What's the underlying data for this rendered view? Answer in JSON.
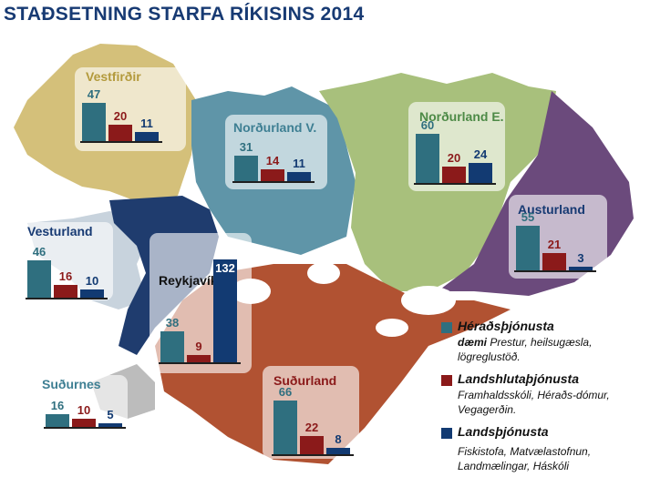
{
  "title": "STAÐSETNING STARFA RÍKISINS 2014",
  "colors": {
    "heradsthjonusta": "#2f6f7f",
    "landshlutathjonusta": "#8b1a1a",
    "landsthjonusta": "#123a72",
    "west_fjords": "#d4c07a",
    "north_west": "#5f95a8",
    "north_east": "#a8c07c",
    "east": "#6b4a7c",
    "south": "#b15232",
    "reykjavik": "#1f3c6e",
    "sudurnes": "#bcbcbc",
    "vesturland": "#c8d3dd"
  },
  "chart_data": [
    {
      "type": "bar",
      "region": "Vestfirðir",
      "categories": [
        "Héraðsþjónusta",
        "Landshlutaþjónusta",
        "Landsþjónusta"
      ],
      "values": [
        47,
        20,
        11
      ]
    },
    {
      "type": "bar",
      "region": "Norðurland V.",
      "categories": [
        "Héraðsþjónusta",
        "Landshlutaþjónusta",
        "Landsþjónusta"
      ],
      "values": [
        31,
        14,
        11
      ]
    },
    {
      "type": "bar",
      "region": "Norðurland E.",
      "categories": [
        "Héraðsþjónusta",
        "Landshlutaþjónusta",
        "Landsþjónusta"
      ],
      "values": [
        60,
        20,
        24
      ]
    },
    {
      "type": "bar",
      "region": "Austurland",
      "categories": [
        "Héraðsþjónusta",
        "Landshlutaþjónusta",
        "Landsþjónusta"
      ],
      "values": [
        55,
        21,
        3
      ]
    },
    {
      "type": "bar",
      "region": "Vesturland",
      "categories": [
        "Héraðsþjónusta",
        "Landshlutaþjónusta",
        "Landsþjónusta"
      ],
      "values": [
        46,
        16,
        10
      ]
    },
    {
      "type": "bar",
      "region": "Reykjavík",
      "categories": [
        "Héraðsþjónusta",
        "Landshlutaþjónusta",
        "Landsþjónusta"
      ],
      "values": [
        38,
        9,
        132
      ]
    },
    {
      "type": "bar",
      "region": "Suðurnes",
      "categories": [
        "Héraðsþjónusta",
        "Landshlutaþjónusta",
        "Landsþjónusta"
      ],
      "values": [
        16,
        10,
        5
      ]
    },
    {
      "type": "bar",
      "region": "Suðurland",
      "categories": [
        "Héraðsþjónusta",
        "Landshlutaþjónusta",
        "Landsþjónusta"
      ],
      "values": [
        66,
        22,
        8
      ]
    }
  ],
  "legend": {
    "heradsthjonusta": {
      "title": "Héraðsþjónusta",
      "examples_label": "dæmi",
      "examples": "Prestur, heilsugæsla, lögreglustöð."
    },
    "landshlutathjonusta": {
      "title": "Landshlutaþjónusta",
      "examples": "Framhaldsskóli, Héraðs-dómur, Vegagerðin."
    },
    "landsthjonusta": {
      "title": "Landsþjónusta",
      "examples": "Fiskistofa, Matvælastofnun, Landmælingar, Háskóli"
    }
  }
}
